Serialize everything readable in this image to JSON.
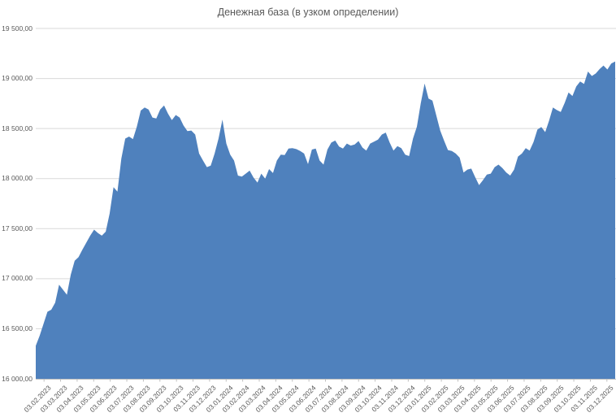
{
  "chart_data": {
    "type": "area",
    "title": "Денежная база (в узком определении)",
    "series_name": "Денежная база (в узком определении)",
    "xlabel": "",
    "ylabel": "",
    "ylim": [
      16000,
      19500
    ],
    "y_tick_step": 500,
    "grid": true,
    "legend_position": "none",
    "y_tick_labels_bottom_to_top": [
      "16 000,00",
      "16 500,00",
      "17 000,00",
      "17 500,00",
      "18 000,00",
      "18 500,00",
      "19 000,00",
      "19 500,00"
    ],
    "x_tick_labels": [
      "03.02.2023",
      "03.03.2023",
      "03.04.2023",
      "03.05.2023",
      "03.06.2023",
      "03.07.2023",
      "03.08.2023",
      "03.09.2023",
      "03.10.2023",
      "03.11.2023",
      "03.12.2023",
      "03.01.2024",
      "03.02.2024",
      "03.03.2024",
      "03.04.2024",
      "03.05.2024",
      "03.06.2024",
      "03.07.2024",
      "03.08.2024",
      "03.09.2024",
      "03.10.2024",
      "03.11.2024",
      "03.12.2024",
      "03.01.2025",
      "03.02.2025",
      "03.03.2025",
      "03.04.2025",
      "03.05.2025",
      "03.06.2025",
      "03.07.2025",
      "03.08.2025",
      "03.09.2025",
      "03.10.2025",
      "03.11.2025",
      "03.12.2025"
    ],
    "values": [
      16330,
      16430,
      16550,
      16670,
      16690,
      16760,
      16940,
      16890,
      16840,
      17040,
      17180,
      17215,
      17290,
      17360,
      17430,
      17490,
      17455,
      17430,
      17470,
      17650,
      17915,
      17870,
      18200,
      18400,
      18420,
      18395,
      18520,
      18680,
      18710,
      18690,
      18610,
      18600,
      18690,
      18730,
      18650,
      18585,
      18635,
      18610,
      18530,
      18475,
      18480,
      18440,
      18250,
      18180,
      18115,
      18130,
      18250,
      18400,
      18590,
      18350,
      18240,
      18180,
      18030,
      18020,
      18050,
      18080,
      18010,
      17960,
      18050,
      18000,
      18095,
      18055,
      18180,
      18240,
      18235,
      18300,
      18305,
      18295,
      18275,
      18250,
      18145,
      18290,
      18300,
      18180,
      18140,
      18290,
      18360,
      18380,
      18320,
      18300,
      18350,
      18330,
      18340,
      18375,
      18310,
      18280,
      18350,
      18370,
      18390,
      18440,
      18460,
      18360,
      18280,
      18325,
      18305,
      18240,
      18225,
      18400,
      18520,
      18750,
      18950,
      18800,
      18780,
      18630,
      18480,
      18380,
      18285,
      18275,
      18250,
      18210,
      18060,
      18090,
      18100,
      18015,
      17935,
      17985,
      18040,
      18050,
      18115,
      18140,
      18105,
      18060,
      18030,
      18090,
      18220,
      18250,
      18305,
      18280,
      18365,
      18490,
      18515,
      18465,
      18580,
      18710,
      18685,
      18665,
      18755,
      18860,
      18825,
      18920,
      18970,
      18945,
      19070,
      19025,
      19050,
      19095,
      19130,
      19090,
      19150,
      19170
    ],
    "colors": {
      "area_fill": "#4F81BD",
      "gridline": "#D9D9D9",
      "axis_line": "#BFBFBF",
      "tick_mark": "#BFBFBF",
      "axis_text": "#595959",
      "title_text": "#595959",
      "background": "#FFFFFF"
    }
  }
}
